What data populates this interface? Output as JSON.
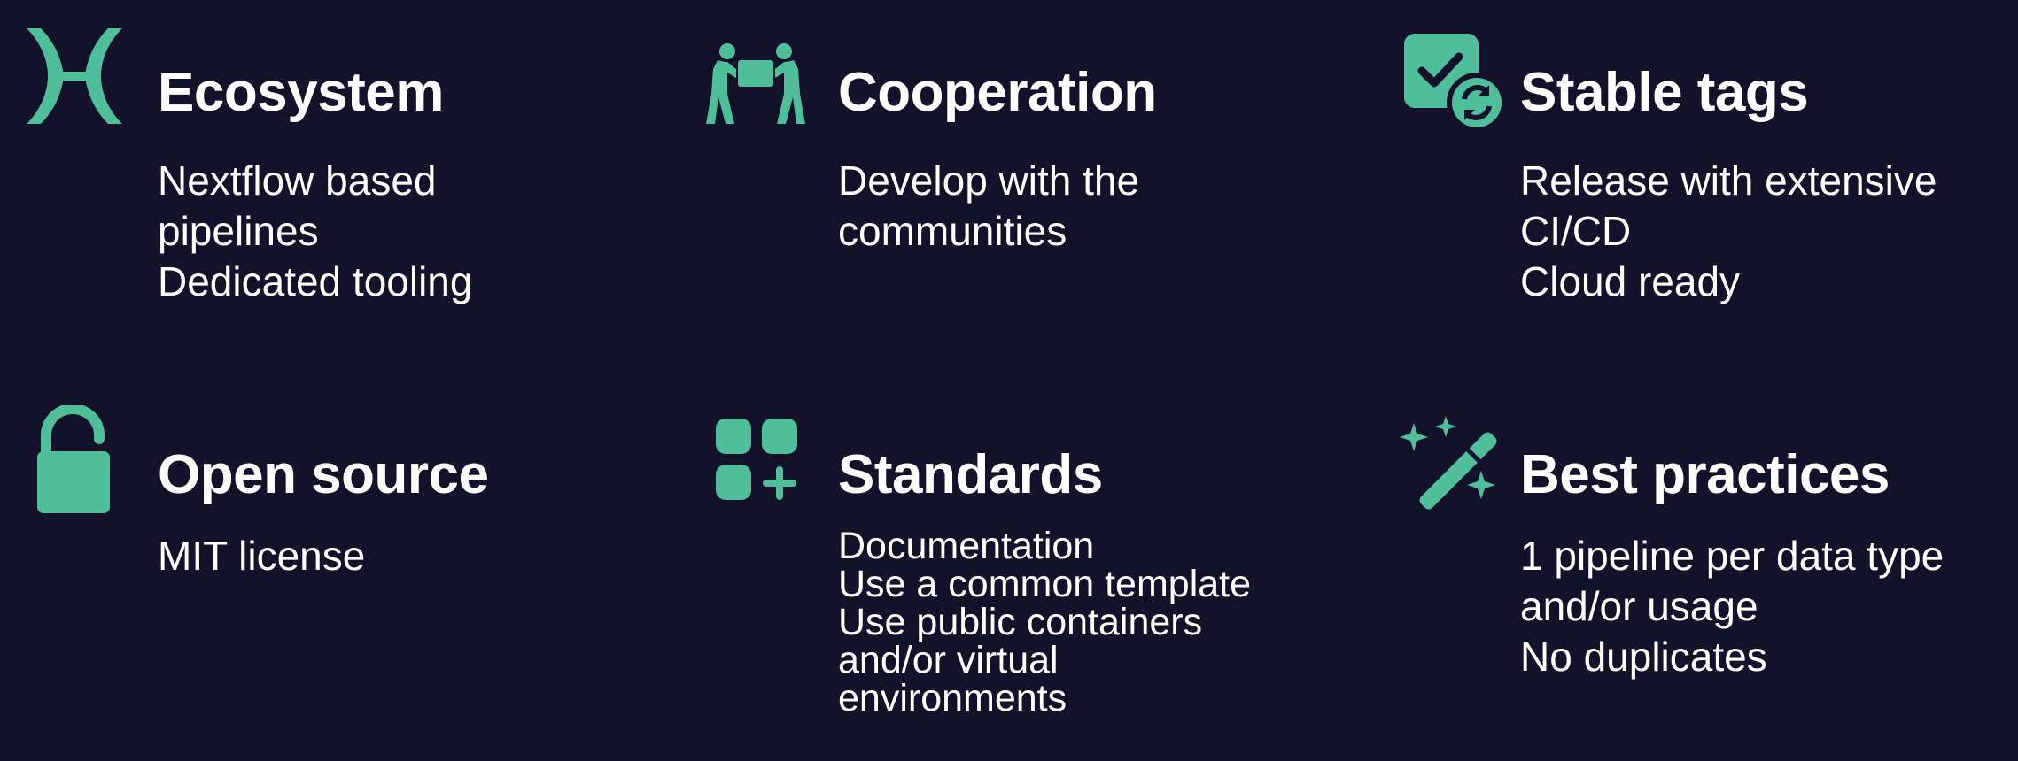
{
  "accent": "#4fbf9a",
  "background": "#14112a",
  "features": [
    {
      "icon": "nf-core-icon",
      "title": "Ecosystem",
      "lines": [
        "Nextflow based",
        "pipelines",
        "Dedicated tooling"
      ]
    },
    {
      "icon": "people-carrying-box-icon",
      "title": "Cooperation",
      "lines": [
        "Develop with the",
        "communities"
      ]
    },
    {
      "icon": "checkbox-sync-icon",
      "title": "Stable tags",
      "lines": [
        "Release with extensive",
        "CI/CD",
        "Cloud ready"
      ]
    },
    {
      "icon": "unlocked-padlock-icon",
      "title": "Open source",
      "lines": [
        "MIT license"
      ]
    },
    {
      "icon": "apps-add-icon",
      "title": "Standards",
      "lines": [
        "Documentation",
        "Use a common template",
        "Use public containers",
        "and/or virtual",
        "environments"
      ]
    },
    {
      "icon": "magic-wand-sparkles-icon",
      "title": "Best practices",
      "lines": [
        "1 pipeline per data type",
        "and/or usage",
        "No duplicates"
      ]
    }
  ]
}
